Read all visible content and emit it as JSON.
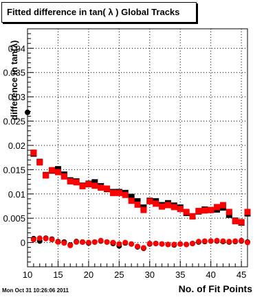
{
  "title": "Fitted difference in tan( λ )  Global Tracks",
  "footer": {
    "timestamp": "Mon Oct 31 10:26:06 2011"
  },
  "colors": {
    "series_black": "#000000",
    "series_red": "#ff0000",
    "grid": "#000000"
  },
  "chart_data": {
    "type": "scatter",
    "title": "Fitted difference in tan( λ )  Global Tracks",
    "xlabel": "No. of Fit Points",
    "ylabel": "difference in tan(λ)",
    "xlim": [
      10,
      46
    ],
    "ylim": [
      -0.005,
      0.044
    ],
    "grid": true,
    "x_ticks": [
      10,
      15,
      20,
      25,
      30,
      35,
      40,
      45
    ],
    "x_tick_labels": [
      "10",
      "15",
      "20",
      "25",
      "30",
      "35",
      "40",
      "45"
    ],
    "y_ticks": [
      0,
      0.005,
      0.01,
      0.015,
      0.02,
      0.025,
      0.03,
      0.035,
      0.04
    ],
    "y_tick_labels": [
      "0",
      "0.005",
      "0.01",
      "0.015",
      "0.02",
      "0.025",
      "0.03",
      "0.035",
      "0.04"
    ],
    "series": [
      {
        "marker": "circle",
        "color": "black",
        "points": [
          [
            10,
            0.0268
          ],
          [
            11,
            0.0008
          ],
          [
            12,
            0.0003
          ],
          [
            13,
            0.0009
          ],
          [
            14,
            0.0007
          ],
          [
            15,
            0.0002
          ],
          [
            16,
            0.0001
          ],
          [
            17,
            -0.0005
          ],
          [
            18,
            0.0002
          ],
          [
            19,
            0.0001
          ],
          [
            20,
            -0.0001
          ],
          [
            21,
            0.0001
          ],
          [
            22,
            0.0003
          ],
          [
            23,
            0.0001
          ],
          [
            24,
            -0.0002
          ],
          [
            25,
            -0.0007
          ],
          [
            26,
            -0.0001
          ],
          [
            27,
            -0.0003
          ],
          [
            28,
            -0.0009
          ],
          [
            29,
            -0.0012
          ],
          [
            30,
            -0.0003
          ],
          [
            31,
            -0.0002
          ],
          [
            32,
            -0.0003
          ],
          [
            33,
            -0.0004
          ],
          [
            34,
            -0.0005
          ],
          [
            35,
            -0.0003
          ],
          [
            36,
            -0.0004
          ],
          [
            37,
            -0.0002
          ],
          [
            38,
            0.0001
          ],
          [
            39,
            0.0002
          ],
          [
            40,
            0.0003
          ],
          [
            41,
            0.0003
          ],
          [
            42,
            0.0002
          ],
          [
            43,
            0.0001
          ],
          [
            44,
            0.0002
          ],
          [
            45,
            0.0003
          ],
          [
            46,
            0.0001
          ]
        ]
      },
      {
        "marker": "circle",
        "color": "red",
        "points": [
          [
            11,
            0.0006
          ],
          [
            12,
            0.0009
          ],
          [
            13,
            0.0008
          ],
          [
            14,
            0.0006
          ],
          [
            15,
            0.0001
          ],
          [
            16,
            -0.0001
          ],
          [
            17,
            -0.0006
          ],
          [
            18,
            0.0001
          ],
          [
            19,
            0.0001
          ],
          [
            20,
            0.0
          ],
          [
            21,
            0.0001
          ],
          [
            22,
            0.0004
          ],
          [
            23,
            0.0001
          ],
          [
            24,
            0.0
          ],
          [
            25,
            -0.0003
          ],
          [
            26,
            0.0
          ],
          [
            27,
            -0.0003
          ],
          [
            28,
            -0.0008
          ],
          [
            29,
            -0.0011
          ],
          [
            30,
            -0.0002
          ],
          [
            31,
            -0.0002
          ],
          [
            32,
            -0.0003
          ],
          [
            33,
            -0.0004
          ],
          [
            34,
            -0.0004
          ],
          [
            35,
            -0.0003
          ],
          [
            36,
            -0.0004
          ],
          [
            37,
            -0.0002
          ],
          [
            38,
            0.0002
          ],
          [
            39,
            0.0003
          ],
          [
            40,
            0.0003
          ],
          [
            41,
            0.0004
          ],
          [
            42,
            0.0003
          ],
          [
            43,
            0.0002
          ],
          [
            44,
            0.0003
          ],
          [
            45,
            0.0004
          ],
          [
            46,
            0.0
          ]
        ]
      },
      {
        "marker": "square",
        "color": "black",
        "points": [
          [
            11,
            0.0183
          ],
          [
            12,
            0.0166
          ],
          [
            13,
            0.0139
          ],
          [
            14,
            0.0148
          ],
          [
            15,
            0.0151
          ],
          [
            16,
            0.014
          ],
          [
            17,
            0.0128
          ],
          [
            18,
            0.0126
          ],
          [
            19,
            0.0117
          ],
          [
            20,
            0.0121
          ],
          [
            21,
            0.0124
          ],
          [
            22,
            0.0116
          ],
          [
            23,
            0.011
          ],
          [
            24,
            0.0104
          ],
          [
            25,
            0.0104
          ],
          [
            26,
            0.0102
          ],
          [
            27,
            0.0094
          ],
          [
            28,
            0.0085
          ],
          [
            29,
            0.0072
          ],
          [
            30,
            0.0086
          ],
          [
            31,
            0.0085
          ],
          [
            32,
            0.0077
          ],
          [
            33,
            0.0081
          ],
          [
            34,
            0.0076
          ],
          [
            35,
            0.0072
          ],
          [
            36,
            0.0061
          ],
          [
            37,
            0.0054
          ],
          [
            38,
            0.0064
          ],
          [
            39,
            0.0068
          ],
          [
            40,
            0.0067
          ],
          [
            41,
            0.0068
          ],
          [
            42,
            0.0072
          ],
          [
            43,
            0.0057
          ],
          [
            44,
            0.0045
          ],
          [
            45,
            0.0041
          ],
          [
            46,
            0.006
          ]
        ]
      },
      {
        "marker": "square",
        "color": "red",
        "points": [
          [
            11,
            0.0185
          ],
          [
            12,
            0.0165
          ],
          [
            13,
            0.0138
          ],
          [
            14,
            0.0149
          ],
          [
            15,
            0.0145
          ],
          [
            16,
            0.0136
          ],
          [
            17,
            0.0126
          ],
          [
            18,
            0.0124
          ],
          [
            19,
            0.0116
          ],
          [
            20,
            0.012
          ],
          [
            21,
            0.0117
          ],
          [
            22,
            0.0113
          ],
          [
            23,
            0.0111
          ],
          [
            24,
            0.0102
          ],
          [
            25,
            0.0102
          ],
          [
            26,
            0.0098
          ],
          [
            27,
            0.0086
          ],
          [
            28,
            0.0078
          ],
          [
            29,
            0.0067
          ],
          [
            30,
            0.0085
          ],
          [
            31,
            0.008
          ],
          [
            32,
            0.0074
          ],
          [
            33,
            0.0077
          ],
          [
            34,
            0.0073
          ],
          [
            35,
            0.0069
          ],
          [
            36,
            0.0063
          ],
          [
            37,
            0.0054
          ],
          [
            38,
            0.0065
          ],
          [
            39,
            0.0066
          ],
          [
            40,
            0.0067
          ],
          [
            41,
            0.0073
          ],
          [
            42,
            0.0077
          ],
          [
            43,
            0.0063
          ],
          [
            44,
            0.0044
          ],
          [
            45,
            0.0042
          ],
          [
            46,
            0.0063
          ]
        ]
      }
    ]
  }
}
